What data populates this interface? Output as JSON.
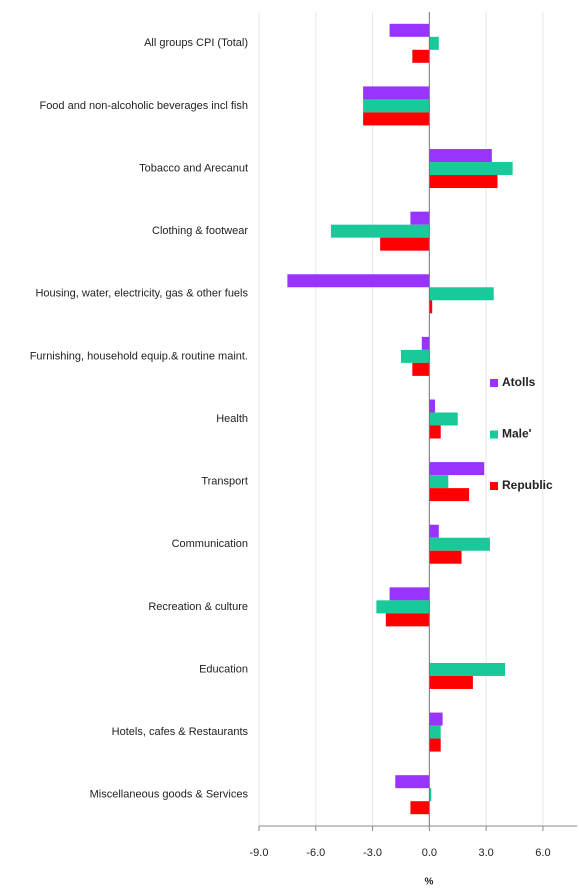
{
  "chart_data": {
    "type": "hbar",
    "categories": [
      "All groups CPI (Total)",
      "Food and non-alcoholic beverages incl fish",
      "Tobacco and Arecanut",
      "Clothing & footwear",
      "Housing, water, electricity, gas & other fuels",
      "Furnishing, household equip.& routine maint.",
      "Health",
      "Transport",
      "Communication",
      "Recreation & culture",
      "Education",
      "Hotels, cafes & Restaurants",
      "Miscellaneous goods & Services"
    ],
    "series": [
      {
        "name": "Atolls",
        "color": "#9933ff",
        "values": [
          -2.1,
          -3.5,
          3.3,
          -1.0,
          -7.5,
          -0.4,
          0.3,
          2.9,
          0.5,
          -2.1,
          0.0,
          0.7,
          -1.8
        ]
      },
      {
        "name": "Male'",
        "color": "#19c99a",
        "values": [
          0.5,
          -3.5,
          4.4,
          -5.2,
          3.4,
          -1.5,
          1.5,
          1.0,
          3.2,
          -2.8,
          4.0,
          0.6,
          0.1
        ]
      },
      {
        "name": "Republic",
        "color": "#ff0000",
        "values": [
          -0.9,
          -3.5,
          3.6,
          -2.6,
          0.15,
          -0.9,
          0.6,
          2.1,
          1.7,
          -2.3,
          2.3,
          0.6,
          -1.0
        ]
      }
    ],
    "x_label": "%",
    "xlim": [
      -9.0,
      7.8
    ],
    "xticks": [
      {
        "value": -9,
        "label": "-9.0"
      },
      {
        "value": -6,
        "label": "-6.0"
      },
      {
        "value": -3,
        "label": "-3.0"
      },
      {
        "value": 0,
        "label": "0.0"
      },
      {
        "value": 3,
        "label": "3.0"
      },
      {
        "value": 6,
        "label": "6.0"
      }
    ],
    "grid": true,
    "legend": "right"
  }
}
